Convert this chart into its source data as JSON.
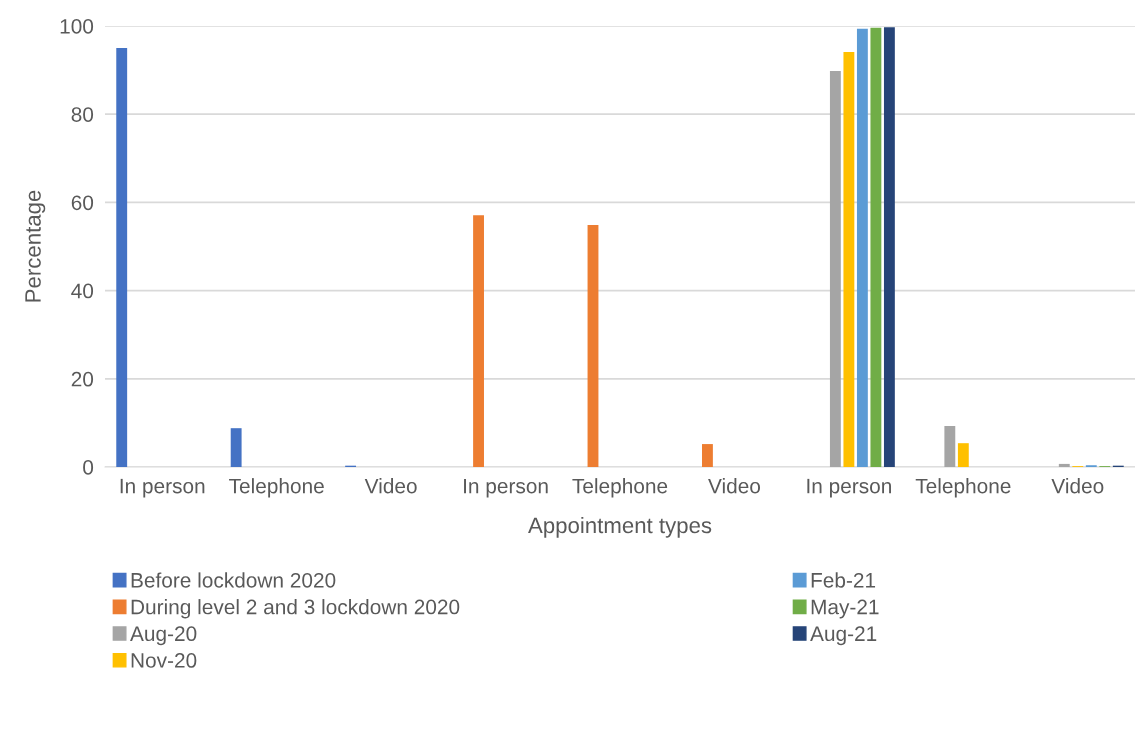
{
  "chart_data": {
    "type": "bar",
    "xlabel": "Appointment types",
    "ylabel": "Percentage",
    "categories": [
      "In person",
      "Telephone",
      "Video",
      "In person",
      "Telephone",
      "Video",
      "In person",
      "Telephone",
      "Video"
    ],
    "series": [
      {
        "name": "Before lockdown 2020",
        "color": "#4472c4",
        "values": [
          95.0,
          8.8,
          0.3,
          null,
          null,
          null,
          null,
          null,
          null
        ]
      },
      {
        "name": "During level 2 and 3 lockdown 2020",
        "color": "#ed7d31",
        "values": [
          null,
          null,
          null,
          57.1,
          54.9,
          5.2,
          null,
          null,
          null
        ]
      },
      {
        "name": "Aug-20",
        "color": "#a5a5a5",
        "values": [
          null,
          null,
          null,
          null,
          null,
          null,
          89.8,
          9.3,
          0.7
        ]
      },
      {
        "name": "Nov-20",
        "color": "#ffc000",
        "values": [
          null,
          null,
          null,
          null,
          null,
          null,
          94.1,
          5.4,
          0.2
        ]
      },
      {
        "name": "Feb-21",
        "color": "#5b9bd5",
        "values": [
          null,
          null,
          null,
          null,
          null,
          null,
          99.4,
          null,
          0.4
        ]
      },
      {
        "name": "May-21",
        "color": "#70ad47",
        "values": [
          null,
          null,
          null,
          null,
          null,
          null,
          99.6,
          null,
          0.2
        ]
      },
      {
        "name": "Aug-21",
        "color": "#264478",
        "values": [
          null,
          null,
          null,
          null,
          null,
          null,
          99.7,
          null,
          0.3
        ]
      }
    ],
    "ylim": [
      0,
      100
    ],
    "yticks": [
      0,
      20,
      40,
      60,
      80,
      100
    ],
    "grid": "y",
    "legend": "bottom"
  }
}
